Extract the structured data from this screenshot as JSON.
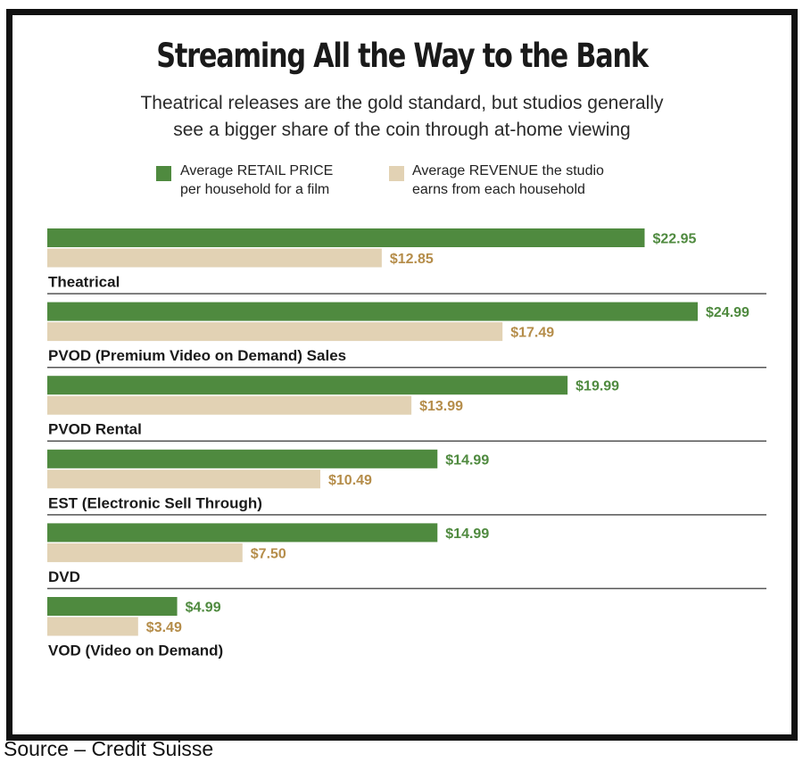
{
  "source": "Source – Credit Suisse",
  "chart_data": {
    "type": "bar",
    "orientation": "horizontal",
    "title": "Streaming All the Way to the Bank",
    "subtitle": [
      "Theatrical releases are the gold standard, but studios generally",
      "see a bigger share of the coin through at-home viewing"
    ],
    "legend_placement": "top",
    "categories": [
      "Theatrical",
      "PVOD (Premium Video on Demand) Sales",
      "PVOD Rental",
      "EST (Electronic Sell Through)",
      "DVD",
      "VOD (Video on Demand)"
    ],
    "series": [
      {
        "name": "Average RETAIL PRICE per household for a film",
        "name_lines": [
          "Average RETAIL PRICE",
          "per household for a film"
        ],
        "color": "#4f8a3f",
        "label_color": "#4f8a3f",
        "values": [
          22.95,
          24.99,
          19.99,
          14.99,
          14.99,
          4.99
        ],
        "labels": [
          "$22.95",
          "$24.99",
          "$19.99",
          "$14.99",
          "$14.99",
          "$4.99"
        ]
      },
      {
        "name": "Average REVENUE the studio earns from each household",
        "name_lines": [
          "Average REVENUE the studio",
          "earns from each household"
        ],
        "color": "#e2d2b4",
        "label_color": "#b58d4a",
        "values": [
          12.85,
          17.49,
          13.99,
          10.49,
          7.5,
          3.49
        ],
        "labels": [
          "$12.85",
          "$17.49",
          "$13.99",
          "$10.49",
          "$7.50",
          "$3.49"
        ]
      }
    ],
    "xlim": [
      0,
      24.99
    ],
    "grid": false
  }
}
